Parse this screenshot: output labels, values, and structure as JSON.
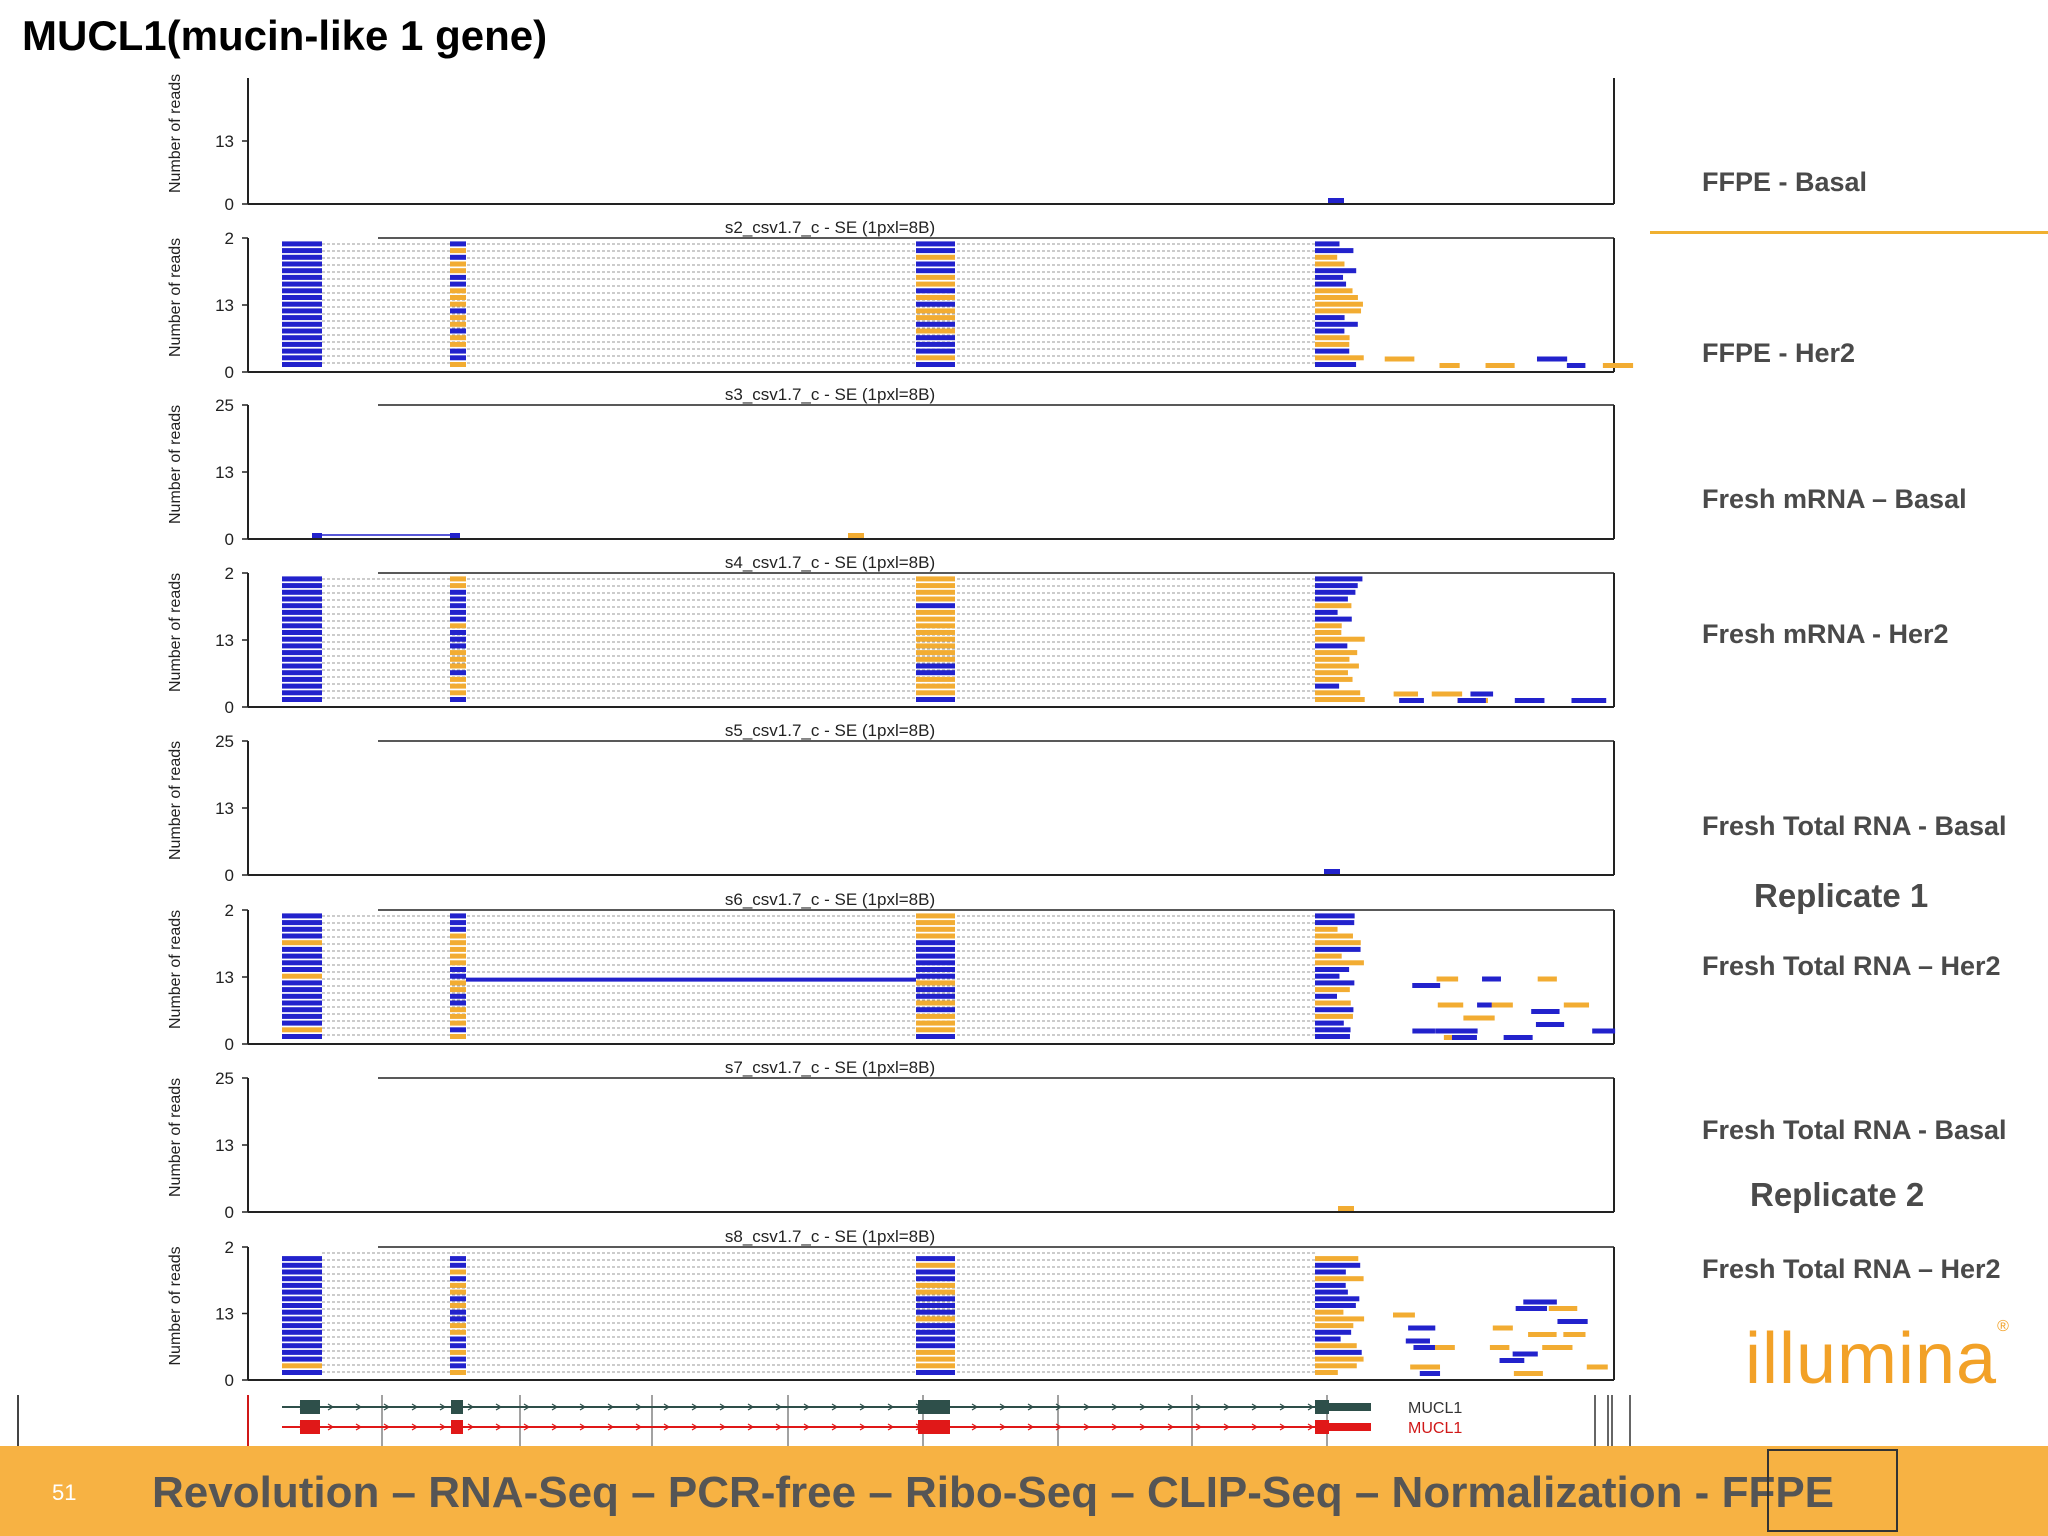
{
  "title": "MUCL1(mucin-like 1 gene)",
  "colors": {
    "forward_read": "#2222cc",
    "reverse_read": "#f2ac32",
    "frame": "#333333",
    "gene_dark": "#2e4f4a",
    "gene_red": "#e01818",
    "footer_bg": "#f7b243",
    "accent": "#f0b030"
  },
  "axis": {
    "ylabel": "Number of reads",
    "ticks_full": [
      "25",
      "13",
      "0"
    ],
    "ticks_partial": [
      "2",
      "13",
      "0"
    ]
  },
  "tracks": [
    {
      "id": "s1",
      "header": "",
      "ticks": [
        "13",
        "0"
      ],
      "label": "FFPE - Basal"
    },
    {
      "id": "s2",
      "header": "s2_csv1.7_c - SE  (1pxl=8B)",
      "ticks": [
        "2",
        "13",
        "0"
      ],
      "label": "FFPE - Her2"
    },
    {
      "id": "s3",
      "header": "s3_csv1.7_c - SE  (1pxl=8B)",
      "ticks": [
        "25",
        "13",
        "0"
      ],
      "label": "Fresh mRNA – Basal"
    },
    {
      "id": "s4",
      "header": "s4_csv1.7_c - SE  (1pxl=8B)",
      "ticks": [
        "2",
        "13",
        "0"
      ],
      "label": "Fresh mRNA - Her2"
    },
    {
      "id": "s5",
      "header": "s5_csv1.7_c - SE  (1pxl=8B)",
      "ticks": [
        "25",
        "13",
        "0"
      ],
      "label": "Fresh Total RNA - Basal"
    },
    {
      "id": "s6",
      "header": "s6_csv1.7_c - SE  (1pxl=8B)",
      "ticks": [
        "2",
        "13",
        "0"
      ],
      "label": "Fresh Total RNA – Her2"
    },
    {
      "id": "s7",
      "header": "s7_csv1.7_c - SE  (1pxl=8B)",
      "ticks": [
        "25",
        "13",
        "0"
      ],
      "label": "Fresh Total RNA - Basal"
    },
    {
      "id": "s8",
      "header": "s8_csv1.7_c - SE  (1pxl=8B)",
      "ticks": [
        "2",
        "13",
        "0"
      ],
      "label": "Fresh Total RNA – Her2"
    }
  ],
  "replicates": [
    "Replicate 1",
    "Replicate 2"
  ],
  "gene_models": [
    "MUCL1",
    "MUCL1"
  ],
  "logo": "illumina",
  "footer": {
    "page": "51",
    "text": "Revolution – RNA-Seq – PCR-free – Ribo-Seq – CLIP-Seq – Normalization - ",
    "highlight": "FFPE"
  }
}
